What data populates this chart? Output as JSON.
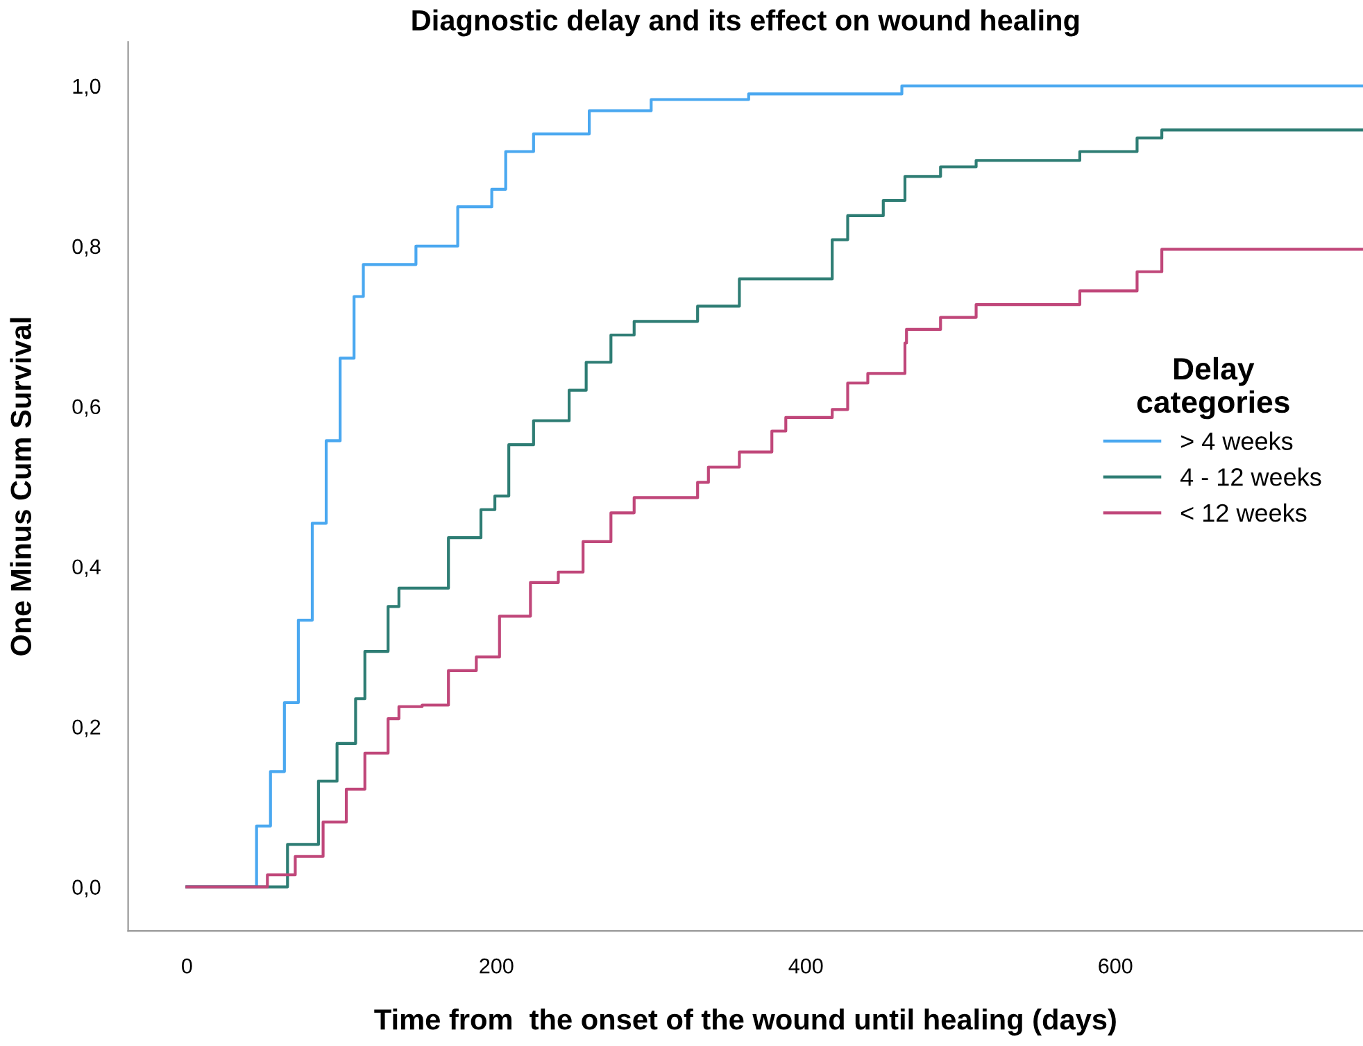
{
  "chart_data": {
    "type": "step",
    "title": "Diagnostic delay and its effect on wound healing",
    "xlabel": "Time from  the onset of the wound until healing (days)",
    "ylabel": "One Minus Cum Survival",
    "legend_title": "Delay\ncategories",
    "legend": "right",
    "xlim": [
      -38,
      760
    ],
    "ylim": [
      -0.055,
      1.055
    ],
    "xticks": [
      0,
      200,
      400,
      600
    ],
    "yticks": [
      {
        "value": 0,
        "label": "0,0"
      },
      {
        "value": 0.2,
        "label": "0,2"
      },
      {
        "value": 0.4,
        "label": "0,4"
      },
      {
        "value": 0.6,
        "label": "0,6"
      },
      {
        "value": 0.8,
        "label": "0,8"
      },
      {
        "value": 1.0,
        "label": "1,0"
      }
    ],
    "grid": false,
    "line_style": "solid",
    "marker": "none",
    "series": [
      {
        "name": "> 4 weeks",
        "color": "#4aa8f0",
        "x": [
          0,
          39,
          45,
          54,
          63,
          72,
          81,
          90,
          99,
          108,
          114,
          136,
          148,
          175,
          197,
          206,
          224,
          260,
          300,
          363,
          462,
          760
        ],
        "values": [
          0,
          0,
          0.076,
          0.144,
          0.23,
          0.333,
          0.454,
          0.557,
          0.66,
          0.737,
          0.777,
          0.777,
          0.8,
          0.849,
          0.871,
          0.918,
          0.94,
          0.969,
          0.983,
          0.99,
          1.0,
          1.0
        ]
      },
      {
        "name": "4 - 12 weeks",
        "color": "#2e7d74",
        "x": [
          0,
          39,
          65,
          85,
          97,
          109,
          115,
          130,
          137,
          148,
          169,
          190,
          199,
          208,
          224,
          247,
          258,
          274,
          289,
          330,
          357,
          417,
          427,
          450,
          464,
          487,
          510,
          577,
          614,
          630,
          760
        ],
        "values": [
          0,
          0,
          0.053,
          0.132,
          0.179,
          0.235,
          0.294,
          0.35,
          0.373,
          0.373,
          0.436,
          0.471,
          0.488,
          0.552,
          0.582,
          0.62,
          0.655,
          0.689,
          0.706,
          0.725,
          0.759,
          0.808,
          0.838,
          0.857,
          0.887,
          0.899,
          0.907,
          0.918,
          0.935,
          0.945,
          0.945
        ]
      },
      {
        "name": "< 12 weeks",
        "color": "#c0477a",
        "x": [
          0,
          39,
          52,
          70,
          88,
          103,
          115,
          130,
          137,
          152,
          169,
          187,
          202,
          222,
          240,
          256,
          274,
          289,
          330,
          337,
          357,
          378,
          387,
          417,
          427,
          440,
          464,
          465,
          487,
          510,
          577,
          614,
          630,
          760
        ],
        "values": [
          0,
          0,
          0.015,
          0.038,
          0.081,
          0.122,
          0.167,
          0.21,
          0.225,
          0.227,
          0.27,
          0.287,
          0.338,
          0.38,
          0.393,
          0.431,
          0.467,
          0.486,
          0.505,
          0.524,
          0.543,
          0.569,
          0.586,
          0.596,
          0.629,
          0.641,
          0.679,
          0.696,
          0.711,
          0.727,
          0.744,
          0.768,
          0.796,
          0.796
        ]
      }
    ]
  }
}
